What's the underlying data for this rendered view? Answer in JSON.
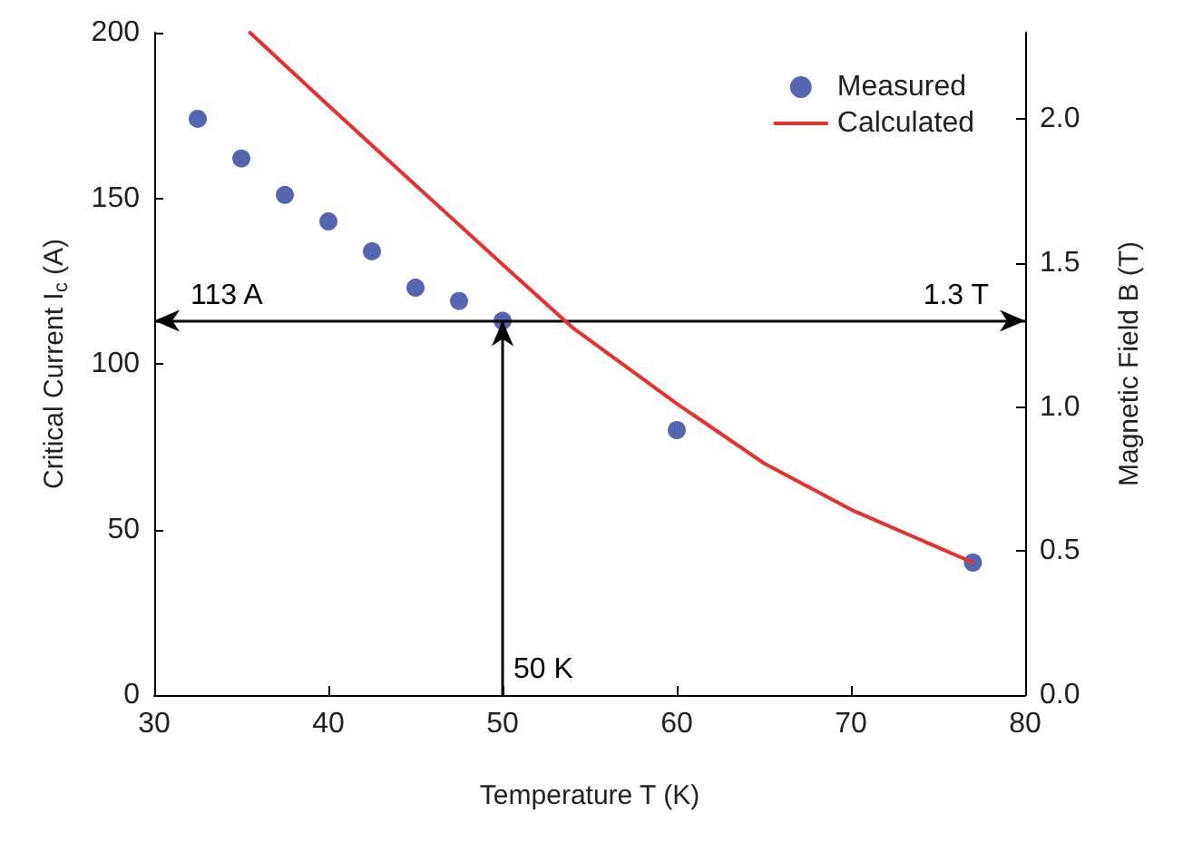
{
  "chart_data": {
    "type": "scatter",
    "xlabel": "Temperature T (K)",
    "ylabel": "Critical Current I$_{c}$ (A)",
    "y2label": "Magnetic Field B (T)",
    "xlim": [
      30,
      80
    ],
    "xticks": [
      30,
      40,
      50,
      60,
      70,
      80
    ],
    "ylim": [
      0,
      200
    ],
    "yticks": [
      0,
      50,
      100,
      150,
      200
    ],
    "y2lim": [
      0,
      2.3
    ],
    "y2ticks": [
      {
        "value": 0,
        "label": "0.0"
      },
      {
        "value": 0.5,
        "label": "0.5"
      },
      {
        "value": 1,
        "label": "1.0"
      },
      {
        "value": 1.5,
        "label": "1.5"
      },
      {
        "value": 2,
        "label": "2.0"
      }
    ],
    "series": [
      {
        "name": "Measured",
        "color": "#2b3f9e",
        "x": [
          32.5,
          35,
          37.5,
          40,
          42.5,
          45,
          47.5,
          50,
          60,
          77
        ],
        "values": [
          174,
          162,
          151,
          143,
          134,
          123,
          119,
          113,
          80,
          40
        ]
      },
      {
        "name": "Calculated",
        "type": "line",
        "color": "#e8312f",
        "marker": "none",
        "x": [
          35.5,
          40,
          45,
          50,
          54,
          60,
          65,
          70,
          77
        ],
        "values": [
          200,
          178,
          154,
          130,
          111,
          88,
          70,
          56,
          40
        ]
      }
    ],
    "ref_lines": [
      {
        "axis": "y",
        "value": 113,
        "label": "113 A",
        "color": "#000000"
      },
      {
        "axis": "x",
        "value": 50,
        "label": "50 K",
        "color": "#000000"
      }
    ],
    "annotations": [
      {
        "text": "1.3 T",
        "x": 80,
        "y": 113
      }
    ],
    "legend": "top right",
    "grid": false,
    "marker": "circle"
  }
}
